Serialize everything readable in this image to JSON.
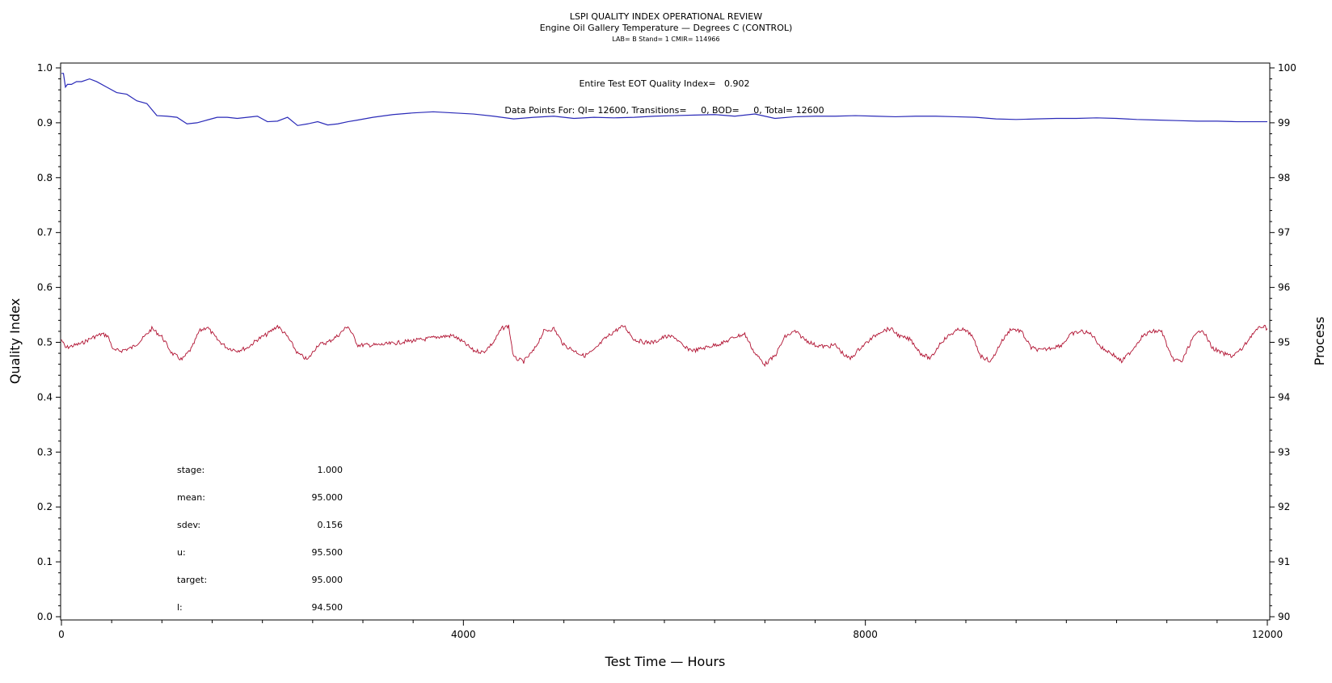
{
  "chart_data": {
    "type": "line",
    "title": "LSPI QUALITY INDEX OPERATIONAL REVIEW",
    "subtitle": "Engine Oil Gallery Temperature — Degrees C (CONTROL)",
    "subtitle2": "LAB= B Stand= 1 CMIR= 114966",
    "xlabel": "Test Time — Hours",
    "ylabel_left": "Quality Index",
    "ylabel_right": "Process",
    "xlim": [
      0,
      12000
    ],
    "ylim_left": [
      0.0,
      1.0
    ],
    "ylim_right": [
      90,
      100
    ],
    "x_ticks": [
      "0",
      "4000",
      "8000",
      "12000"
    ],
    "y_ticks_left": [
      "0.0",
      "0.1",
      "0.2",
      "0.3",
      "0.4",
      "0.5",
      "0.6",
      "0.7",
      "0.8",
      "0.9",
      "1.0"
    ],
    "y_ticks_right": [
      "90",
      "91",
      "92",
      "93",
      "94",
      "95",
      "96",
      "97",
      "98",
      "99",
      "100"
    ],
    "annotations": {
      "qi_text": "Entire Test EOT Quality Index=   0.902",
      "points_text": "Data Points For: QI= 12600, Transitions=     0, BOD=     0, Total= 12600"
    },
    "stats": [
      {
        "label": "stage:",
        "value": "1.000"
      },
      {
        "label": "mean:",
        "value": "95.000"
      },
      {
        "label": "sdev:",
        "value": "0.156"
      },
      {
        "label": "u:",
        "value": "95.500"
      },
      {
        "label": "target:",
        "value": "95.000"
      },
      {
        "label": "l:",
        "value": "94.500"
      }
    ],
    "series": [
      {
        "axis": "left",
        "color": "#2a2ab8",
        "x": [
          0,
          20,
          40,
          60,
          100,
          150,
          200,
          280,
          350,
          450,
          550,
          650,
          750,
          850,
          950,
          1050,
          1150,
          1250,
          1350,
          1450,
          1550,
          1650,
          1750,
          1850,
          1950,
          2050,
          2150,
          2250,
          2350,
          2450,
          2550,
          2650,
          2750,
          2850,
          2950,
          3100,
          3300,
          3500,
          3700,
          3900,
          4100,
          4300,
          4500,
          4700,
          4900,
          5100,
          5300,
          5500,
          5700,
          5900,
          6100,
          6300,
          6500,
          6700,
          6900,
          7100,
          7300,
          7500,
          7700,
          7900,
          8100,
          8300,
          8500,
          8700,
          8900,
          9100,
          9300,
          9500,
          9700,
          9900,
          10100,
          10300,
          10500,
          10700,
          10900,
          11100,
          11300,
          11500,
          11700,
          11900,
          12000
        ],
        "y": [
          0.99,
          0.99,
          0.965,
          0.97,
          0.97,
          0.975,
          0.975,
          0.98,
          0.975,
          0.965,
          0.955,
          0.952,
          0.94,
          0.935,
          0.913,
          0.912,
          0.91,
          0.898,
          0.9,
          0.905,
          0.91,
          0.91,
          0.908,
          0.91,
          0.912,
          0.902,
          0.903,
          0.91,
          0.895,
          0.898,
          0.902,
          0.896,
          0.898,
          0.902,
          0.905,
          0.91,
          0.915,
          0.918,
          0.92,
          0.918,
          0.916,
          0.912,
          0.907,
          0.91,
          0.912,
          0.908,
          0.91,
          0.909,
          0.91,
          0.912,
          0.913,
          0.914,
          0.915,
          0.912,
          0.916,
          0.908,
          0.911,
          0.912,
          0.912,
          0.913,
          0.912,
          0.911,
          0.912,
          0.912,
          0.911,
          0.91,
          0.907,
          0.906,
          0.907,
          0.908,
          0.908,
          0.909,
          0.908,
          0.906,
          0.905,
          0.904,
          0.903,
          0.903,
          0.902,
          0.902,
          0.902
        ]
      },
      {
        "axis": "right",
        "color": "#b01030",
        "x": [
          0,
          40,
          100,
          200,
          300,
          400,
          460,
          520,
          600,
          700,
          800,
          900,
          1000,
          1100,
          1200,
          1300,
          1370,
          1450,
          1550,
          1650,
          1750,
          1850,
          1950,
          2050,
          2150,
          2250,
          2350,
          2450,
          2550,
          2650,
          2750,
          2850,
          2950,
          3050,
          3150,
          3300,
          3450,
          3600,
          3750,
          3900,
          4000,
          4100,
          4200,
          4300,
          4380,
          4450,
          4500,
          4600,
          4700,
          4800,
          4900,
          5000,
          5100,
          5200,
          5300,
          5400,
          5500,
          5600,
          5700,
          5800,
          5900,
          6000,
          6100,
          6200,
          6300,
          6400,
          6500,
          6600,
          6700,
          6800,
          6900,
          7000,
          7100,
          7200,
          7300,
          7400,
          7500,
          7600,
          7700,
          7800,
          7850,
          7950,
          8050,
          8150,
          8250,
          8350,
          8450,
          8550,
          8650,
          8750,
          8850,
          8950,
          9050,
          9150,
          9250,
          9350,
          9450,
          9550,
          9650,
          9750,
          9850,
          9950,
          10050,
          10150,
          10250,
          10350,
          10450,
          10550,
          10650,
          10750,
          10850,
          10950,
          11050,
          11150,
          11250,
          11350,
          11450,
          11550,
          11650,
          11750,
          11850,
          11950,
          12000
        ],
        "y": [
          95.05,
          94.9,
          94.93,
          94.98,
          95.08,
          95.15,
          95.12,
          94.85,
          94.85,
          94.9,
          95.05,
          95.25,
          95.1,
          94.8,
          94.68,
          94.9,
          95.2,
          95.28,
          95.05,
          94.9,
          94.85,
          94.9,
          95.05,
          95.15,
          95.3,
          95.1,
          94.8,
          94.68,
          94.95,
          95.0,
          95.12,
          95.3,
          94.95,
          94.95,
          94.95,
          94.98,
          95.02,
          95.05,
          95.1,
          95.12,
          95.0,
          94.85,
          94.82,
          95.0,
          95.25,
          95.3,
          94.72,
          94.65,
          94.85,
          95.2,
          95.25,
          94.95,
          94.85,
          94.75,
          94.85,
          95.05,
          95.2,
          95.3,
          95.05,
          95.0,
          95.0,
          95.1,
          95.1,
          94.9,
          94.85,
          94.9,
          94.95,
          95.0,
          95.1,
          95.15,
          94.8,
          94.6,
          94.75,
          95.1,
          95.2,
          95.05,
          94.95,
          94.92,
          94.95,
          94.75,
          94.7,
          94.9,
          95.05,
          95.2,
          95.25,
          95.1,
          95.05,
          94.8,
          94.7,
          95.0,
          95.15,
          95.25,
          95.15,
          94.75,
          94.65,
          95.0,
          95.25,
          95.2,
          94.9,
          94.85,
          94.9,
          94.95,
          95.15,
          95.2,
          95.15,
          94.9,
          94.8,
          94.65,
          94.85,
          95.1,
          95.2,
          95.2,
          94.7,
          94.65,
          95.05,
          95.25,
          94.9,
          94.8,
          94.75,
          94.88,
          95.15,
          95.3,
          95.25
        ]
      }
    ]
  }
}
